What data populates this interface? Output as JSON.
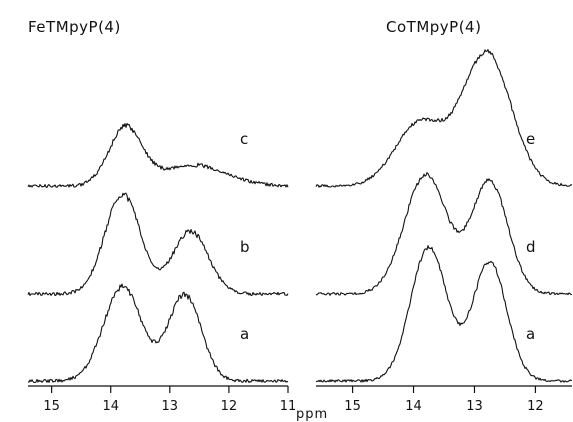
{
  "chart_data": [
    {
      "type": "line",
      "title": "FeTMpyP(4)",
      "xlabel": "ppm",
      "x_reversed": true,
      "xlim": [
        15.4,
        11.0
      ],
      "x_ticks": [
        15,
        14,
        13,
        12,
        11
      ],
      "y_axis_shown": false,
      "grid": false,
      "series": [
        {
          "name": "c",
          "peaks": [
            {
              "ppm": 13.75,
              "height": 0.55,
              "width": 0.28
            },
            {
              "ppm": 12.6,
              "height": 0.2,
              "width": 0.55
            }
          ]
        },
        {
          "name": "b",
          "peaks": [
            {
              "ppm": 13.8,
              "height": 0.95,
              "width": 0.3
            },
            {
              "ppm": 12.65,
              "height": 0.6,
              "width": 0.3
            }
          ]
        },
        {
          "name": "a",
          "peaks": [
            {
              "ppm": 13.8,
              "height": 0.9,
              "width": 0.32
            },
            {
              "ppm": 12.75,
              "height": 0.82,
              "width": 0.28
            }
          ]
        }
      ]
    },
    {
      "type": "line",
      "title": "CoTMpyP(4)",
      "xlabel": "ppm",
      "x_reversed": true,
      "xlim": [
        15.6,
        11.4
      ],
      "x_ticks": [
        15,
        14,
        13,
        12
      ],
      "y_axis_shown": false,
      "grid": false,
      "series": [
        {
          "name": "e",
          "peaks": [
            {
              "ppm": 13.9,
              "height": 0.45,
              "width": 0.4
            },
            {
              "ppm": 12.8,
              "height": 0.95,
              "width": 0.4
            }
          ]
        },
        {
          "name": "d",
          "peaks": [
            {
              "ppm": 13.8,
              "height": 0.85,
              "width": 0.35
            },
            {
              "ppm": 12.75,
              "height": 0.8,
              "width": 0.3
            }
          ]
        },
        {
          "name": "a",
          "peaks": [
            {
              "ppm": 13.75,
              "height": 0.95,
              "width": 0.3
            },
            {
              "ppm": 12.75,
              "height": 0.85,
              "width": 0.28
            }
          ]
        }
      ]
    }
  ]
}
